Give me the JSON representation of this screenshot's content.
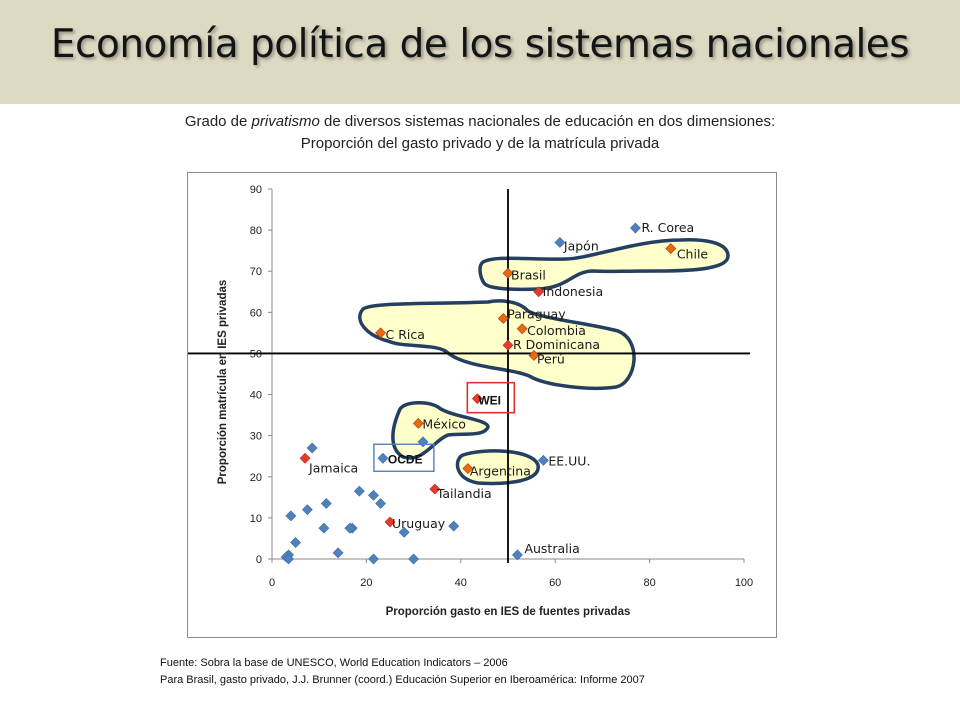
{
  "header": {
    "title": "Economía política de los sistemas nacionales"
  },
  "subtitle": {
    "line1_prefix": "Grado de ",
    "line1_emphasis": "privatismo",
    "line1_suffix": " de diversos sistemas nacionales de educación en dos dimensiones:",
    "line2": "Proporción del gasto privado y de la matrícula privada"
  },
  "colors": {
    "header_bg": "#ddd9c3",
    "blue_marker": "#4f81bd",
    "red_marker": "#e83a2b",
    "orange_marker": "#e46c0a",
    "highlight_fill": "#ffffcc",
    "highlight_stroke": "#243f60",
    "wei_box": "#d9352a",
    "ocde_box": "#4f81bd"
  },
  "chart_data": {
    "type": "scatter",
    "xlabel": "Proporción gasto en IES de fuentes privadas",
    "ylabel": "Proporción matrícula en IES privadas",
    "xlim": [
      0,
      100
    ],
    "ylim": [
      0,
      90
    ],
    "xticks": [
      0,
      20,
      40,
      60,
      80,
      100
    ],
    "yticks": [
      0,
      10,
      20,
      30,
      40,
      50,
      60,
      70,
      80,
      90
    ],
    "grid": false,
    "reference_lines": {
      "x": 50,
      "y": 50
    },
    "labeled_points": [
      {
        "label": "R. Corea",
        "x": 77,
        "y": 80.5,
        "marker": "blue"
      },
      {
        "label": "Japón",
        "x": 61,
        "y": 77,
        "marker": "blue"
      },
      {
        "label": "Chile",
        "x": 84.5,
        "y": 75.5,
        "marker": "orange"
      },
      {
        "label": "Brasil",
        "x": 50,
        "y": 69.5,
        "marker": "orange"
      },
      {
        "label": "Indonesia",
        "x": 56.5,
        "y": 65,
        "marker": "red"
      },
      {
        "label": "Paraguay",
        "x": 49,
        "y": 58.5,
        "marker": "orange"
      },
      {
        "label": "Colombia",
        "x": 53,
        "y": 56,
        "marker": "orange"
      },
      {
        "label": "C Rica",
        "x": 23,
        "y": 55,
        "marker": "orange"
      },
      {
        "label": "R Dominicana",
        "x": 50,
        "y": 52,
        "marker": "red"
      },
      {
        "label": "Perú",
        "x": 55.5,
        "y": 49.5,
        "marker": "orange"
      },
      {
        "label": "WEI",
        "x": 43.5,
        "y": 39,
        "marker": "red"
      },
      {
        "label": "México",
        "x": 31,
        "y": 33,
        "marker": "orange"
      },
      {
        "label": "OCDE",
        "x": 23.5,
        "y": 24.5,
        "marker": "blue"
      },
      {
        "label": "Jamaica",
        "x": 7,
        "y": 24.5,
        "marker": "red"
      },
      {
        "label": "Argentina",
        "x": 41.5,
        "y": 22,
        "marker": "orange"
      },
      {
        "label": "EE.UU.",
        "x": 57.5,
        "y": 24,
        "marker": "blue"
      },
      {
        "label": "Tailandia",
        "x": 34.5,
        "y": 17,
        "marker": "red"
      },
      {
        "label": "Uruguay",
        "x": 25,
        "y": 9,
        "marker": "red"
      },
      {
        "label": "Australia",
        "x": 52,
        "y": 1,
        "marker": "blue"
      }
    ],
    "unlabeled_points": [
      [
        8.5,
        27
      ],
      [
        32,
        28.5
      ],
      [
        18.5,
        16.5
      ],
      [
        21.5,
        15.5
      ],
      [
        23,
        13.5
      ],
      [
        11.5,
        13.5
      ],
      [
        7.5,
        12
      ],
      [
        4,
        10.5
      ],
      [
        11,
        7.5
      ],
      [
        17,
        7.5
      ],
      [
        16.5,
        7.5
      ],
      [
        38.5,
        8
      ],
      [
        28,
        6.5
      ],
      [
        5,
        4
      ],
      [
        14,
        1.5
      ],
      [
        3.5,
        1
      ],
      [
        3,
        0.5
      ],
      [
        3.5,
        0
      ],
      [
        21.5,
        0
      ],
      [
        30,
        0
      ]
    ],
    "annotations": [
      "WEI",
      "OCDE"
    ]
  },
  "footer": {
    "line1": "Fuente: Sobra la base de UNESCO, World Education Indicators – 2006",
    "line2": "Para Brasil, gasto privado, J.J. Brunner (coord.) Educación Superior en Iberoamérica: Informe 2007"
  }
}
